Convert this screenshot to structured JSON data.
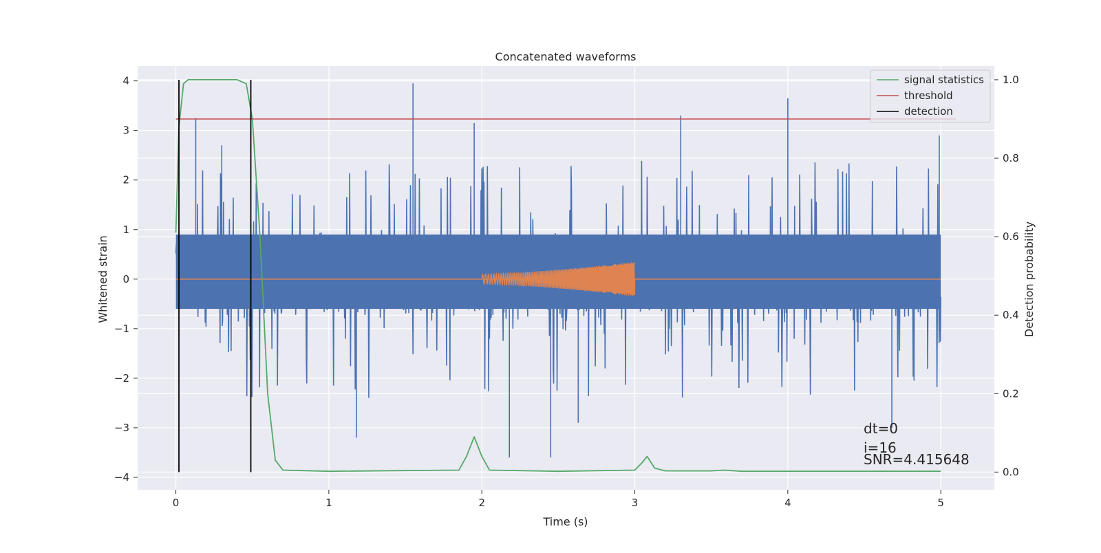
{
  "chart_data": {
    "type": "line",
    "title": "Concatenated waveforms",
    "xlabel": "Time (s)",
    "ylabel": "Whitened strain",
    "y2label": "Detection probability",
    "xlim": [
      -0.25,
      5.35
    ],
    "ylim": [
      -4.25,
      4.3
    ],
    "y2lim": [
      -0.045,
      1.035
    ],
    "grid": true,
    "legend_position": "top-right",
    "x_ticks": [
      "0",
      "1",
      "2",
      "3",
      "4",
      "5"
    ],
    "y_ticks": [
      "4",
      "3",
      "2",
      "1",
      "0",
      "−1",
      "−2",
      "−3",
      "−4"
    ],
    "y2_ticks": [
      "1.0",
      "0.8",
      "0.6",
      "0.4",
      "0.2",
      "0.0"
    ],
    "series": [
      {
        "kind": "noise",
        "color": "#4C72B0",
        "x_range": [
          0,
          5
        ],
        "typical_envelope": [
          -1.6,
          2.0
        ],
        "spikes": [
          {
            "x": 0.13,
            "y": 3.25
          },
          {
            "x": 1.55,
            "y": 3.95
          },
          {
            "x": 1.95,
            "y": 3.15
          },
          {
            "x": 3.3,
            "y": 3.3
          },
          {
            "x": 4.0,
            "y": 3.65
          },
          {
            "x": 4.99,
            "y": 2.9
          },
          {
            "x": 1.18,
            "y": -3.2
          },
          {
            "x": 2.18,
            "y": -3.6
          },
          {
            "x": 2.45,
            "y": -3.6
          },
          {
            "x": 2.63,
            "y": -2.9
          },
          {
            "x": 4.68,
            "y": -3.0
          },
          {
            "x": 0.3,
            "y": 2.7
          }
        ]
      },
      {
        "kind": "chirp",
        "color": "#DD8452",
        "x_range": [
          0,
          5
        ],
        "active_range": [
          2.0,
          3.0
        ],
        "amplitude_start": 0.1,
        "amplitude_end": 0.35
      },
      {
        "name": "signal statistics",
        "color": "#55A868",
        "axis": "right",
        "points": [
          [
            0.0,
            0.61
          ],
          [
            0.02,
            0.88
          ],
          [
            0.05,
            0.99
          ],
          [
            0.08,
            1.0
          ],
          [
            0.4,
            1.0
          ],
          [
            0.46,
            0.99
          ],
          [
            0.5,
            0.9
          ],
          [
            0.55,
            0.6
          ],
          [
            0.6,
            0.2
          ],
          [
            0.65,
            0.03
          ],
          [
            0.7,
            0.005
          ],
          [
            1.0,
            0.002
          ],
          [
            1.85,
            0.005
          ],
          [
            1.9,
            0.04
          ],
          [
            1.95,
            0.09
          ],
          [
            2.0,
            0.04
          ],
          [
            2.05,
            0.005
          ],
          [
            2.5,
            0.002
          ],
          [
            3.0,
            0.005
          ],
          [
            3.05,
            0.025
          ],
          [
            3.08,
            0.04
          ],
          [
            3.13,
            0.01
          ],
          [
            3.2,
            0.003
          ],
          [
            3.5,
            0.003
          ],
          [
            3.58,
            0.005
          ],
          [
            3.7,
            0.002
          ],
          [
            5.0,
            0.002
          ]
        ]
      },
      {
        "name": "threshold",
        "color": "#C44E52",
        "axis": "right",
        "y": 0.9,
        "x_range": [
          0,
          5.1
        ]
      },
      {
        "name": "detection",
        "color": "#000000",
        "axis": "right",
        "x": [
          0.02,
          0.49
        ],
        "y_range": [
          0.0,
          1.0
        ]
      }
    ],
    "annotations": [
      "dt=0",
      "i=16",
      "SNR=4.415648"
    ]
  }
}
